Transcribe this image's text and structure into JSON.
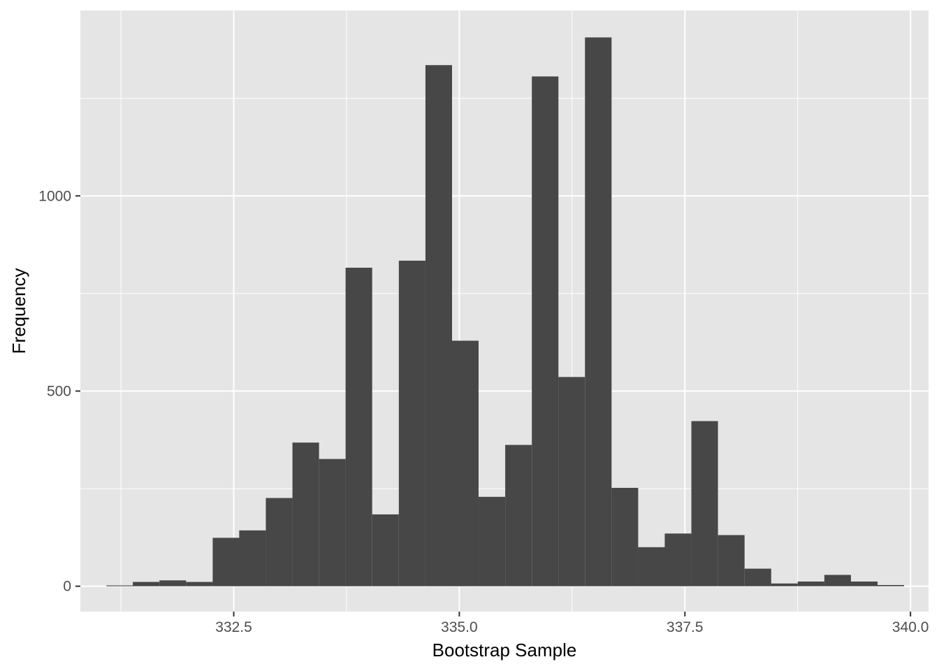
{
  "chart_data": {
    "type": "bar",
    "subtype": "histogram",
    "xlabel": "Bootstrap Sample",
    "ylabel": "Frequency",
    "xlim": [
      330.8,
      340.2
    ],
    "ylim": [
      -65,
      1475
    ],
    "x_ticks": [
      332.5,
      335.0,
      337.5,
      340.0
    ],
    "x_tick_labels": [
      "332.5",
      "335.0",
      "337.5",
      "340.0"
    ],
    "y_ticks": [
      0,
      500,
      1000
    ],
    "y_tick_labels": [
      "0",
      "500",
      "1000"
    ],
    "bin_width": 0.2947,
    "bin_centers": [
      331.235,
      331.529,
      331.824,
      332.119,
      332.414,
      332.708,
      333.003,
      333.298,
      333.593,
      333.887,
      334.182,
      334.477,
      334.772,
      335.066,
      335.361,
      335.656,
      335.951,
      336.245,
      336.54,
      336.835,
      337.13,
      337.424,
      337.719,
      338.014,
      338.309,
      338.603,
      338.898,
      339.193,
      339.488,
      339.782
    ],
    "values": [
      2,
      11,
      15,
      11,
      124,
      143,
      226,
      368,
      326,
      816,
      184,
      834,
      1335,
      629,
      229,
      362,
      1306,
      536,
      1406,
      252,
      100,
      135,
      423,
      131,
      45,
      7,
      12,
      29,
      12,
      3
    ],
    "bar_color": "#474747",
    "panel_background": "#e5e5e5",
    "grid": true,
    "legend": "none"
  }
}
